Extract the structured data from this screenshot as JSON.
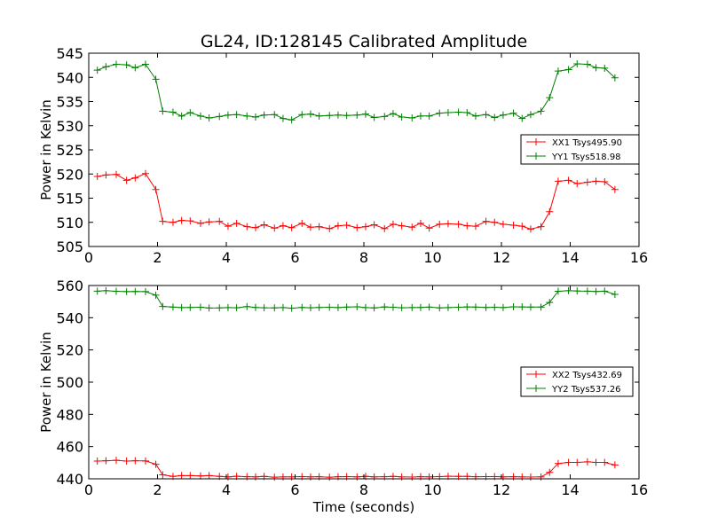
{
  "title": "GL24, ID:128145 Calibrated Amplitude",
  "chart_data": [
    {
      "type": "line",
      "ylabel": "Power in Kelvin",
      "xlabel": "",
      "xlim": [
        0,
        16
      ],
      "ylim": [
        505,
        545
      ],
      "xticks": [
        "0",
        "2",
        "4",
        "6",
        "8",
        "10",
        "12",
        "14",
        "16"
      ],
      "yticks": [
        "505",
        "510",
        "515",
        "520",
        "525",
        "530",
        "535",
        "540",
        "545"
      ],
      "legend_position": "center-right",
      "x": [
        0.25,
        0.5,
        0.8,
        1.1,
        1.35,
        1.65,
        1.95,
        2.15,
        2.45,
        2.7,
        2.95,
        3.25,
        3.5,
        3.8,
        4.05,
        4.3,
        4.6,
        4.85,
        5.1,
        5.4,
        5.65,
        5.9,
        6.2,
        6.45,
        6.7,
        7.0,
        7.25,
        7.5,
        7.8,
        8.05,
        8.3,
        8.6,
        8.85,
        9.1,
        9.4,
        9.65,
        9.9,
        10.2,
        10.45,
        10.75,
        11.0,
        11.25,
        11.55,
        11.8,
        12.05,
        12.35,
        12.6,
        12.85,
        13.15,
        13.4,
        13.65,
        13.95,
        14.2,
        14.5,
        14.75,
        15.0,
        15.3
      ],
      "series": [
        {
          "name": "XX1 Tsys495.90",
          "color": "#ff0000",
          "values": [
            519.5,
            519.8,
            519.9,
            518.7,
            519.2,
            520.1,
            516.8,
            510.2,
            510.0,
            510.4,
            510.3,
            509.8,
            510.1,
            510.2,
            509.2,
            509.8,
            509.1,
            508.9,
            509.5,
            508.8,
            509.3,
            508.9,
            509.8,
            509.0,
            509.1,
            508.7,
            509.3,
            509.4,
            508.9,
            509.1,
            509.5,
            508.7,
            509.6,
            509.3,
            509.0,
            509.8,
            508.8,
            509.6,
            509.7,
            509.6,
            509.3,
            509.2,
            510.2,
            510.0,
            509.6,
            509.4,
            509.2,
            508.6,
            509.1,
            512.2,
            518.5,
            518.7,
            518.0,
            518.3,
            518.5,
            518.4,
            516.8
          ]
        },
        {
          "name": "YY1 Tsys518.98",
          "color": "#008000",
          "values": [
            541.5,
            542.2,
            542.7,
            542.6,
            542.0,
            542.7,
            539.6,
            533.0,
            532.8,
            532.0,
            532.7,
            532.0,
            531.6,
            531.9,
            532.2,
            532.3,
            532.0,
            531.8,
            532.2,
            532.3,
            531.5,
            531.2,
            532.3,
            532.4,
            532.0,
            532.1,
            532.2,
            532.1,
            532.2,
            532.4,
            531.7,
            531.9,
            532.5,
            531.8,
            531.6,
            532.0,
            532.0,
            532.6,
            532.7,
            532.8,
            532.7,
            532.0,
            532.3,
            531.7,
            532.2,
            532.6,
            531.5,
            532.3,
            533.0,
            535.8,
            541.3,
            541.6,
            542.8,
            542.7,
            542.0,
            541.9,
            539.9
          ]
        }
      ]
    },
    {
      "type": "line",
      "ylabel": "Power in Kelvin",
      "xlabel": "Time (seconds)",
      "xlim": [
        0,
        16
      ],
      "ylim": [
        440,
        560
      ],
      "xticks": [
        "0",
        "2",
        "4",
        "6",
        "8",
        "10",
        "12",
        "14",
        "16"
      ],
      "yticks": [
        "440",
        "460",
        "480",
        "500",
        "520",
        "540",
        "560"
      ],
      "legend_position": "center-right",
      "x": [
        0.25,
        0.5,
        0.8,
        1.1,
        1.35,
        1.65,
        1.95,
        2.15,
        2.45,
        2.7,
        2.95,
        3.25,
        3.5,
        3.8,
        4.05,
        4.3,
        4.6,
        4.85,
        5.1,
        5.4,
        5.65,
        5.9,
        6.2,
        6.45,
        6.7,
        7.0,
        7.25,
        7.5,
        7.8,
        8.05,
        8.3,
        8.6,
        8.85,
        9.1,
        9.4,
        9.65,
        9.9,
        10.2,
        10.45,
        10.75,
        11.0,
        11.25,
        11.55,
        11.8,
        12.05,
        12.35,
        12.6,
        12.85,
        13.15,
        13.4,
        13.65,
        13.95,
        14.2,
        14.5,
        14.75,
        15.0,
        15.3
      ],
      "series": [
        {
          "name": "XX2 Tsys432.69",
          "color": "#ff0000",
          "values": [
            451,
            451.2,
            451.5,
            451,
            451.2,
            451.1,
            449,
            442.5,
            441.5,
            442,
            442,
            441.8,
            442,
            441.5,
            441.2,
            441.6,
            441.3,
            441.2,
            441.5,
            441,
            441.2,
            441.2,
            441.4,
            441.2,
            441.3,
            441,
            441.3,
            441.4,
            441.2,
            441.5,
            441.2,
            441.3,
            441.5,
            441.2,
            441.1,
            441.3,
            441.2,
            441.4,
            441.6,
            441.5,
            441.5,
            441.3,
            441.4,
            441.4,
            441.2,
            441.3,
            441.2,
            441.1,
            441.2,
            444,
            449.5,
            450.2,
            450.2,
            450.5,
            450.2,
            450.2,
            448.6
          ]
        },
        {
          "name": "YY2 Tsys537.26",
          "color": "#008000",
          "values": [
            556.5,
            556.8,
            556.4,
            556.2,
            556.3,
            556.2,
            554,
            547,
            546.6,
            546.3,
            546.4,
            546.5,
            546,
            546.1,
            546.3,
            546.2,
            546.9,
            546.4,
            546.2,
            546.1,
            546.3,
            545.9,
            546.4,
            546.2,
            546.4,
            546.5,
            546.3,
            546.6,
            546.8,
            546.3,
            546.1,
            546.7,
            546.5,
            546.2,
            546.3,
            546.4,
            546.6,
            546.1,
            546.3,
            546.5,
            546.7,
            546.6,
            546.4,
            546.5,
            546.3,
            546.8,
            546.7,
            546.6,
            546.6,
            549.5,
            556.4,
            556.8,
            556.6,
            556.5,
            556.3,
            556.5,
            554.5
          ]
        }
      ]
    }
  ]
}
